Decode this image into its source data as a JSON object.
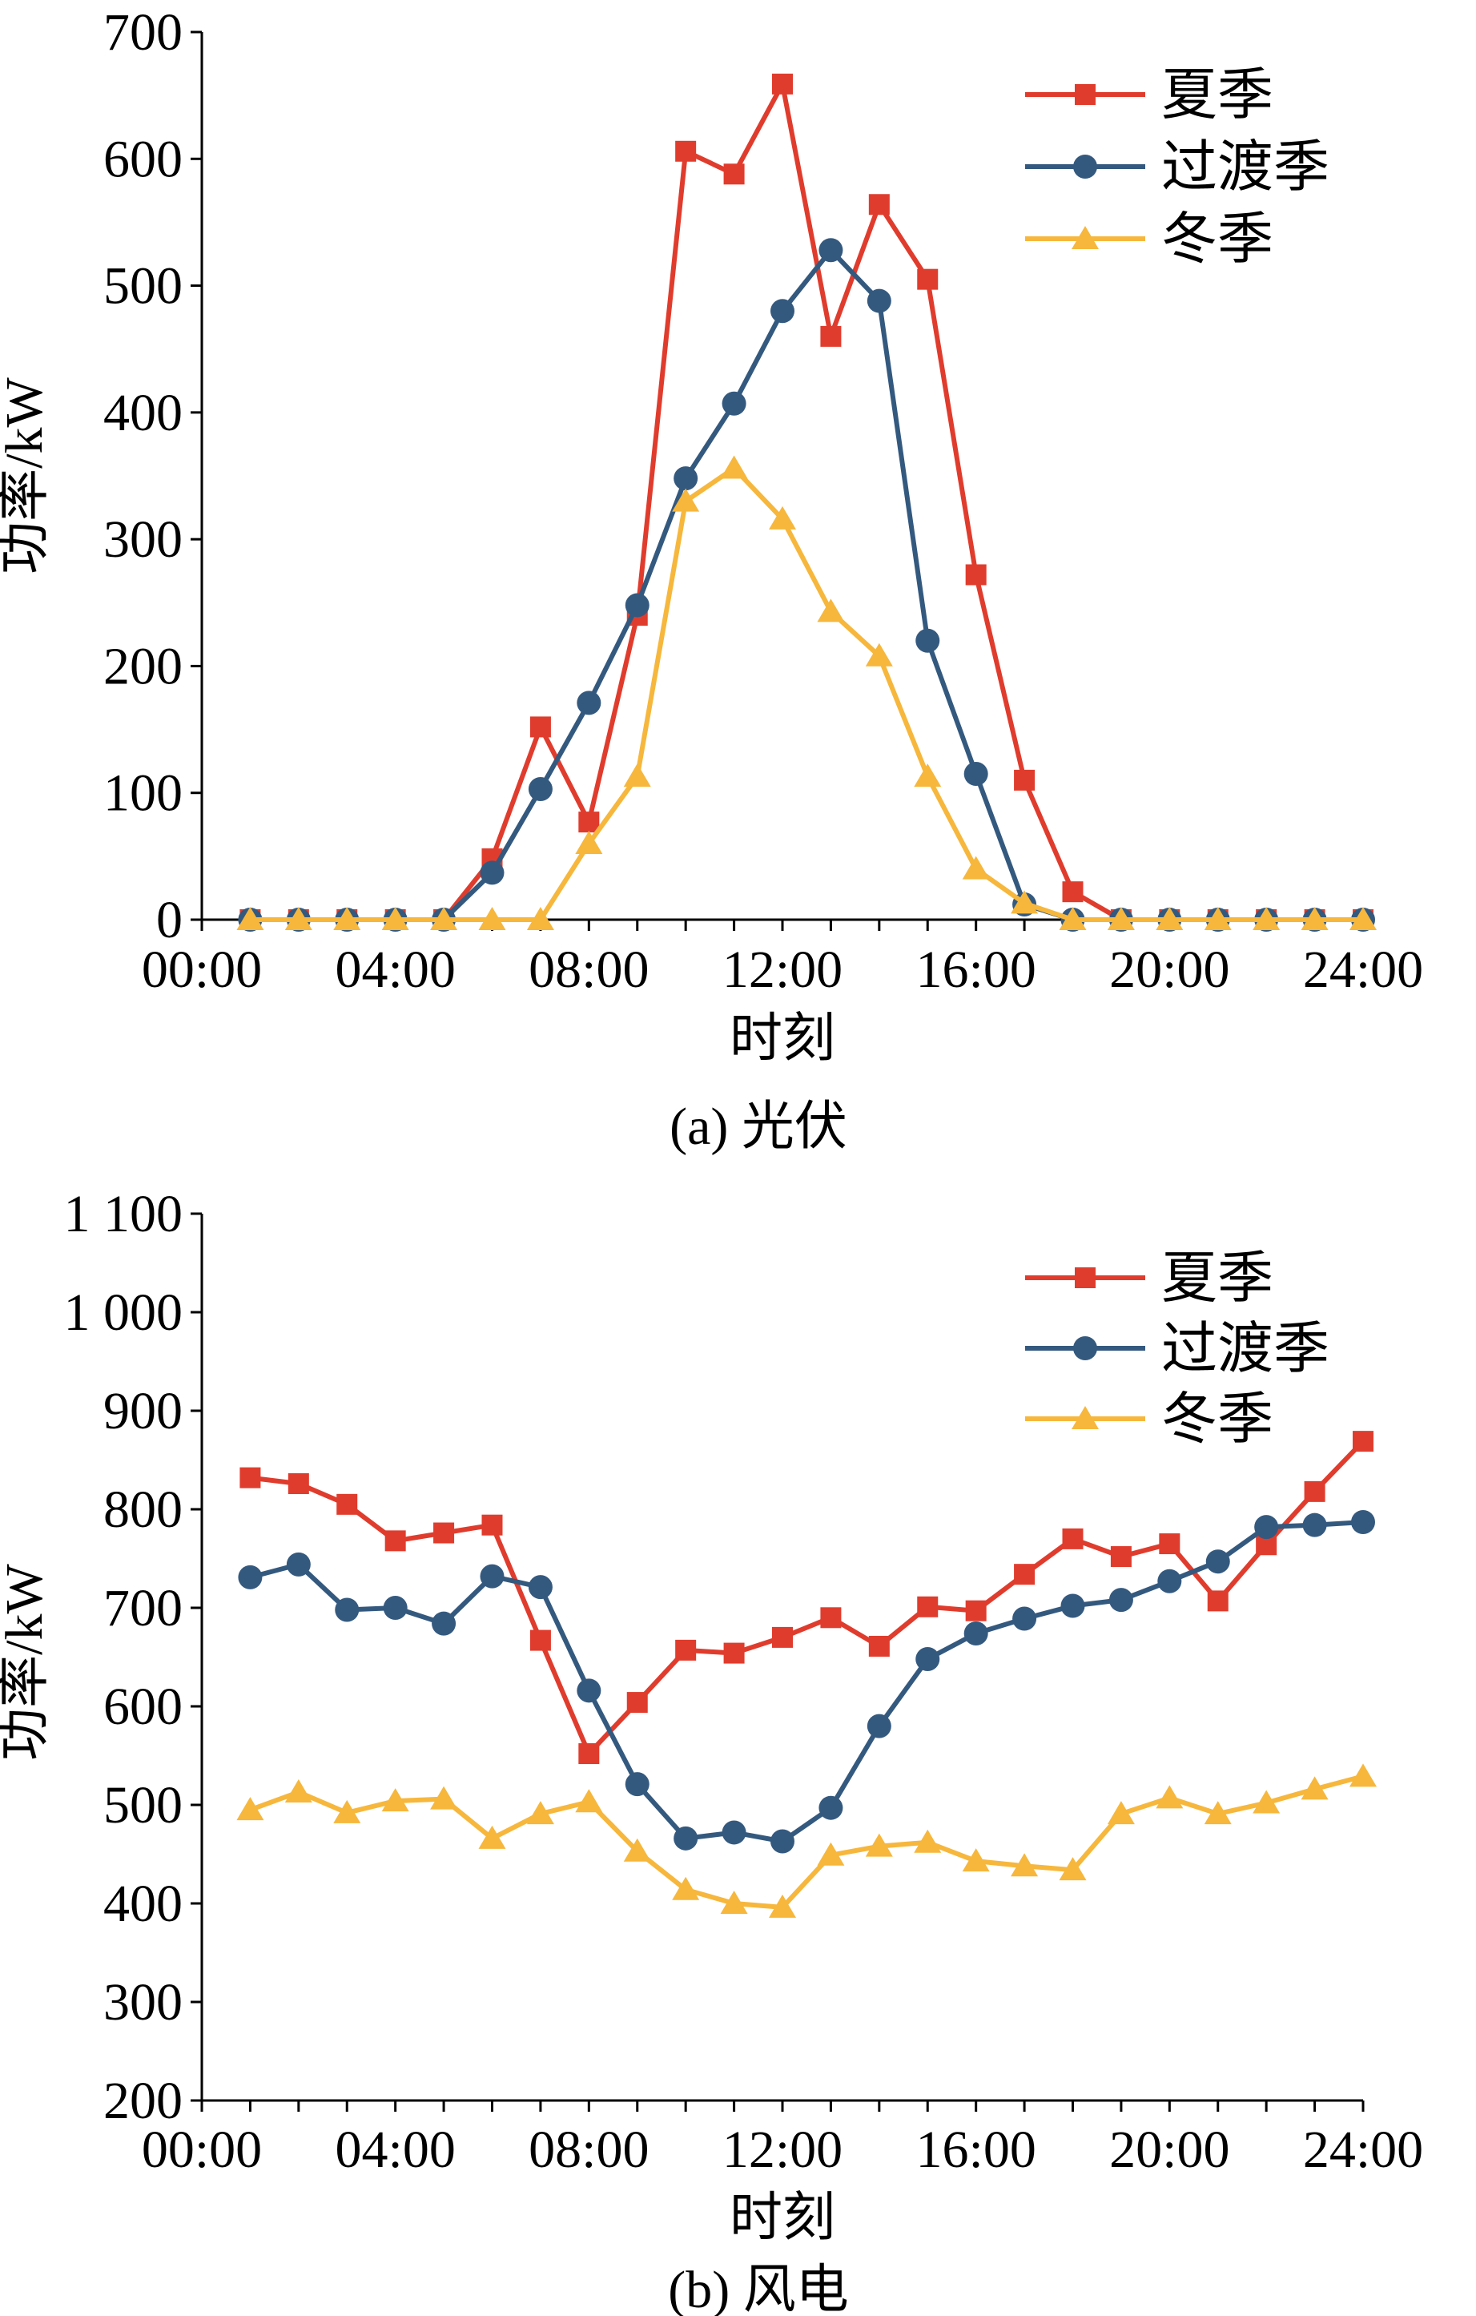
{
  "colors": {
    "summer": "#e03c2d",
    "transition": "#34597f",
    "winter": "#f6b73c",
    "axis": "#000000"
  },
  "chart_data": [
    {
      "type": "line",
      "caption": "(a) 光伏",
      "xlabel": "时刻",
      "ylabel": "功率/kW",
      "ylim": [
        0,
        700
      ],
      "yticks": [
        0,
        100,
        200,
        300,
        400,
        500,
        600,
        700
      ],
      "ytick_labels": [
        "0",
        "100",
        "200",
        "300",
        "400",
        "500",
        "600",
        "700"
      ],
      "xlim": [
        0,
        24
      ],
      "xticks": [
        0,
        4,
        8,
        12,
        16,
        20,
        24
      ],
      "xtick_labels": [
        "00:00",
        "04:00",
        "08:00",
        "12:00",
        "16:00",
        "20:00",
        "24:00"
      ],
      "legend_position": "top-right",
      "x": [
        1,
        2,
        3,
        4,
        5,
        6,
        7,
        8,
        9,
        10,
        11,
        12,
        13,
        14,
        15,
        16,
        17,
        18,
        19,
        20,
        21,
        22,
        23,
        24
      ],
      "series": [
        {
          "name": "夏季",
          "marker": "square",
          "color_key": "summer",
          "values": [
            0,
            0,
            0,
            0,
            0,
            48,
            152,
            77,
            240,
            606,
            588,
            659,
            460,
            564,
            505,
            272,
            110,
            22,
            0,
            0,
            0,
            0,
            0,
            0
          ]
        },
        {
          "name": "过渡季",
          "marker": "circle",
          "color_key": "transition",
          "values": [
            0,
            0,
            0,
            0,
            0,
            37,
            103,
            171,
            248,
            348,
            407,
            480,
            528,
            488,
            220,
            115,
            12,
            0,
            0,
            0,
            0,
            0,
            0,
            0
          ]
        },
        {
          "name": "冬季",
          "marker": "triangle",
          "color_key": "winter",
          "values": [
            0,
            0,
            0,
            0,
            0,
            0,
            0,
            60,
            113,
            330,
            356,
            316,
            243,
            208,
            113,
            40,
            13,
            0,
            0,
            0,
            0,
            0,
            0,
            0
          ]
        }
      ]
    },
    {
      "type": "line",
      "caption": "(b) 风电",
      "xlabel": "时刻",
      "ylabel": "功率/kW",
      "ylim": [
        200,
        1100
      ],
      "yticks": [
        200,
        300,
        400,
        500,
        600,
        700,
        800,
        900,
        1000,
        1100
      ],
      "ytick_labels": [
        "200",
        "300",
        "400",
        "500",
        "600",
        "700",
        "800",
        "900",
        "1 000",
        "1 100"
      ],
      "xlim": [
        0,
        24
      ],
      "xticks": [
        0,
        4,
        8,
        12,
        16,
        20,
        24
      ],
      "xtick_labels": [
        "00:00",
        "04:00",
        "08:00",
        "12:00",
        "16:00",
        "20:00",
        "24:00"
      ],
      "legend_position": "top-right",
      "x": [
        1,
        2,
        3,
        4,
        5,
        6,
        7,
        8,
        9,
        10,
        11,
        12,
        13,
        14,
        15,
        16,
        17,
        18,
        19,
        20,
        21,
        22,
        23,
        24
      ],
      "series": [
        {
          "name": "夏季",
          "marker": "square",
          "color_key": "summer",
          "values": [
            832,
            826,
            805,
            768,
            776,
            784,
            667,
            552,
            604,
            657,
            654,
            670,
            690,
            661,
            701,
            697,
            734,
            770,
            752,
            765,
            707,
            764,
            818,
            869
          ]
        },
        {
          "name": "过渡季",
          "marker": "circle",
          "color_key": "transition",
          "values": [
            731,
            744,
            698,
            700,
            684,
            732,
            721,
            616,
            521,
            466,
            472,
            463,
            497,
            580,
            648,
            674,
            689,
            702,
            708,
            727,
            747,
            782,
            784,
            787
          ]
        },
        {
          "name": "冬季",
          "marker": "triangle",
          "color_key": "winter",
          "values": [
            495,
            513,
            492,
            504,
            506,
            466,
            491,
            503,
            453,
            414,
            400,
            396,
            449,
            458,
            462,
            443,
            438,
            434,
            491,
            507,
            491,
            502,
            516,
            529
          ]
        }
      ]
    }
  ]
}
